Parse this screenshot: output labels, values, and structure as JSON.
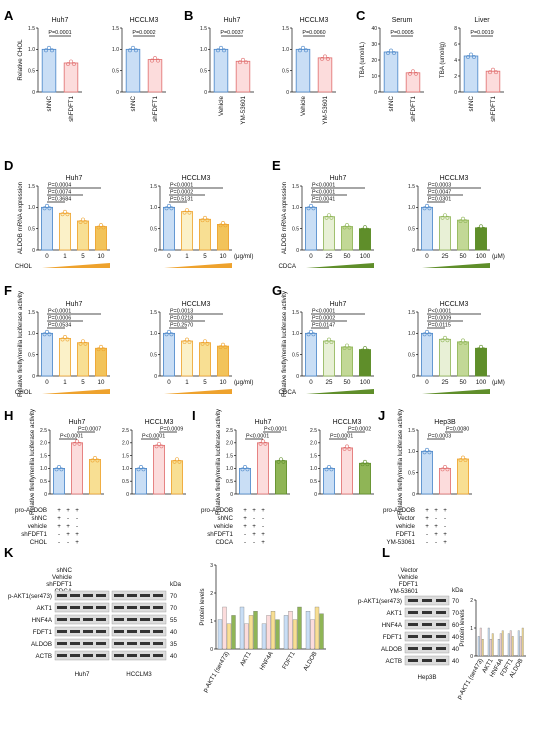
{
  "figure": {
    "panels": [
      "A",
      "B",
      "C",
      "D",
      "E",
      "F",
      "G",
      "H",
      "I",
      "J",
      "K",
      "L"
    ]
  },
  "colors": {
    "blue_bar": "#c9def5",
    "blue_edge": "#4a86c8",
    "pink_bar": "#fcdcdc",
    "pink_edge": "#e06d6d",
    "y1": "#fbf1c8",
    "y2": "#f8df93",
    "y3": "#f2c35a",
    "y4": "#eea22d",
    "g1": "#e8f0d6",
    "g2": "#c2d896",
    "g3": "#8fb556",
    "g4": "#5f8e2a",
    "orange": "#f3b15a",
    "green": "#6f9d35"
  },
  "chart_data": [
    {
      "panel": "A",
      "type": "bar",
      "title": "Huh7",
      "ylabel": "Relative CHOL",
      "categories": [
        "shNC",
        "shFDFT1"
      ],
      "values": [
        1.0,
        0.68
      ],
      "ylim": [
        0,
        1.5
      ],
      "yticks": [
        "0",
        "0.5",
        "1.0",
        "1.5"
      ],
      "pvalue": "P=0.0001"
    },
    {
      "panel": "A",
      "type": "bar",
      "title": "HCCLM3",
      "categories": [
        "shNC",
        "shFDFT1"
      ],
      "values": [
        1.0,
        0.76
      ],
      "ylim": [
        0,
        1.5
      ],
      "yticks": [
        "0",
        "0.5",
        "1.0",
        "1.5"
      ],
      "pvalue": "P=0.0002"
    },
    {
      "panel": "B",
      "type": "bar",
      "title": "Huh7",
      "categories": [
        "Vehicle",
        "YM-53601"
      ],
      "values": [
        1.0,
        0.72
      ],
      "ylim": [
        0,
        1.5
      ],
      "yticks": [
        "0",
        "0.5",
        "1.0",
        "1.5"
      ],
      "pvalue": "P=0.0037"
    },
    {
      "panel": "B",
      "type": "bar",
      "title": "HCCLM3",
      "categories": [
        "Vehicle",
        "YM-53601"
      ],
      "values": [
        1.0,
        0.8
      ],
      "ylim": [
        0,
        1.5
      ],
      "yticks": [
        "0",
        "0.5",
        "1.0",
        "1.5"
      ],
      "pvalue": "P=0.0060"
    },
    {
      "panel": "C",
      "type": "bar",
      "title": "Serum",
      "ylabel": "TBA (umol/L)",
      "categories": [
        "shNC",
        "shFDFT1"
      ],
      "values": [
        25,
        12
      ],
      "ylim": [
        0,
        40
      ],
      "yticks": [
        "0",
        "10",
        "20",
        "30",
        "40"
      ],
      "pvalue": "P=0.0005"
    },
    {
      "panel": "C",
      "type": "bar",
      "title": "Liver",
      "ylabel": "TBA (umol/g)",
      "categories": [
        "shNC",
        "shFDFT1"
      ],
      "values": [
        4.5,
        2.6
      ],
      "ylim": [
        0,
        8
      ],
      "yticks": [
        "0",
        "2",
        "4",
        "6",
        "8"
      ],
      "pvalue": "P=0.0019"
    },
    {
      "panel": "D",
      "type": "bar",
      "title": "Huh7",
      "ylabel": "ALDOB mRNA expression",
      "categories": [
        "0",
        "1",
        "5",
        "10"
      ],
      "values": [
        1.0,
        0.86,
        0.68,
        0.55
      ],
      "ylim": [
        0,
        1.5
      ],
      "yticks": [
        "0",
        "0.5",
        "1.0",
        "1.5"
      ],
      "xlabel": "CHOL",
      "pvalues": [
        "P=0.3684",
        "P=0.0074",
        "P=0.0004"
      ]
    },
    {
      "panel": "D",
      "type": "bar",
      "title": "HCCLM3",
      "categories": [
        "0",
        "1",
        "5",
        "10"
      ],
      "values": [
        1.0,
        0.9,
        0.72,
        0.6
      ],
      "ylim": [
        0,
        1.5
      ],
      "yticks": [
        "0",
        "0.5",
        "1.0",
        "1.5"
      ],
      "unit": "(μg/ml)",
      "pvalues": [
        "P=0.5131",
        "P=0.0002",
        "P<0.0001"
      ]
    },
    {
      "panel": "E",
      "type": "bar",
      "title": "Huh7",
      "ylabel": "ALDOB mRNA expression",
      "categories": [
        "0",
        "25",
        "50",
        "100"
      ],
      "values": [
        1.0,
        0.78,
        0.55,
        0.5
      ],
      "ylim": [
        0,
        1.5
      ],
      "yticks": [
        "0",
        "0.5",
        "1.0",
        "1.5"
      ],
      "xlabel": "CDCA",
      "pvalues": [
        "P=0.0041",
        "P<0.0001",
        "P<0.0001"
      ]
    },
    {
      "panel": "E",
      "type": "bar",
      "title": "HCCLM3",
      "categories": [
        "0",
        "25",
        "50",
        "100"
      ],
      "values": [
        1.0,
        0.78,
        0.7,
        0.52
      ],
      "ylim": [
        0,
        1.5
      ],
      "yticks": [
        "0",
        "0.5",
        "1.0",
        "1.5"
      ],
      "unit": "(μM)",
      "pvalues": [
        "P=0.0301",
        "P=0.0047",
        "P=0.0003"
      ]
    },
    {
      "panel": "F",
      "type": "bar",
      "title": "Huh7",
      "ylabel": "Relative firefly/renilla luciferase activity",
      "categories": [
        "0",
        "1",
        "5",
        "10"
      ],
      "values": [
        1.0,
        0.88,
        0.78,
        0.65
      ],
      "ylim": [
        0,
        1.5
      ],
      "yticks": [
        "0",
        "0.5",
        "1.0",
        "1.5"
      ],
      "xlabel": "CHOL",
      "pvalues": [
        "P=0.0534",
        "P=0.0006",
        "P<0.0001"
      ]
    },
    {
      "panel": "F",
      "type": "bar",
      "title": "HCCLM3",
      "categories": [
        "0",
        "1",
        "5",
        "10"
      ],
      "values": [
        1.0,
        0.82,
        0.78,
        0.7
      ],
      "ylim": [
        0,
        1.5
      ],
      "yticks": [
        "0",
        "0.5",
        "1.0",
        "1.5"
      ],
      "unit": "(μg/ml)",
      "pvalues": [
        "P=0.2570",
        "P=0.0218",
        "P=0.0013"
      ]
    },
    {
      "panel": "G",
      "type": "bar",
      "title": "Huh7",
      "ylabel": "Relative firefly/renilla luciferase activity",
      "categories": [
        "0",
        "25",
        "50",
        "100"
      ],
      "values": [
        1.0,
        0.82,
        0.68,
        0.62
      ],
      "ylim": [
        0,
        1.5
      ],
      "yticks": [
        "0",
        "0.5",
        "1.0",
        "1.5"
      ],
      "xlabel": "CDCA",
      "pvalues": [
        "P=0.0147",
        "P=0.0002",
        "P<0.0001"
      ]
    },
    {
      "panel": "G",
      "type": "bar",
      "title": "HCCLM3",
      "categories": [
        "0",
        "25",
        "50",
        "100"
      ],
      "values": [
        1.0,
        0.86,
        0.8,
        0.65
      ],
      "ylim": [
        0,
        1.5
      ],
      "yticks": [
        "0",
        "0.5",
        "1.0",
        "1.5"
      ],
      "unit": "(μM)",
      "pvalues": [
        "P=0.0115",
        "P=0.0009",
        "P<0.0001"
      ]
    },
    {
      "panel": "H",
      "type": "bar",
      "title": "Huh7",
      "ylabel": "Relative firefly/renilla luciferase activity",
      "categories": [
        "1",
        "2",
        "3"
      ],
      "values": [
        1.0,
        2.0,
        1.35
      ],
      "ylim": [
        0,
        2.5
      ],
      "yticks": [
        "0",
        "0.5",
        "1.0",
        "1.5",
        "2.0",
        "2.5"
      ],
      "pvalues": [
        "P<0.0001",
        "P=0.0007"
      ]
    },
    {
      "panel": "H",
      "type": "bar",
      "title": "HCCLM3",
      "categories": [
        "1",
        "2",
        "3"
      ],
      "values": [
        1.0,
        1.9,
        1.3
      ],
      "ylim": [
        0,
        2.5
      ],
      "yticks": [
        "0",
        "0.5",
        "1.0",
        "1.5",
        "2.0",
        "2.5"
      ],
      "pvalues": [
        "P<0.0001",
        "P=0.0009"
      ]
    },
    {
      "panel": "I",
      "type": "bar",
      "title": "Huh7",
      "ylabel": "Relative firefly/renilla luciferase activity",
      "categories": [
        "1",
        "2",
        "3"
      ],
      "values": [
        1.0,
        2.0,
        1.3
      ],
      "ylim": [
        0,
        2.5
      ],
      "yticks": [
        "0",
        "0.5",
        "1.0",
        "1.5",
        "2.0",
        "2.5"
      ],
      "pvalues": [
        "P<0.0001",
        "P<0.0001"
      ]
    },
    {
      "panel": "I",
      "type": "bar",
      "title": "HCCLM3",
      "categories": [
        "1",
        "2",
        "3"
      ],
      "values": [
        1.0,
        1.8,
        1.2
      ],
      "ylim": [
        0,
        2.5
      ],
      "yticks": [
        "0",
        "0.5",
        "1.0",
        "1.5",
        "2.0",
        "2.5"
      ],
      "pvalues": [
        "P=0.0001",
        "P=0.0002"
      ]
    },
    {
      "panel": "J",
      "type": "bar",
      "title": "Hep3B",
      "ylabel": "Relative firefly/renilla luciferase activity",
      "categories": [
        "1",
        "2",
        "3"
      ],
      "values": [
        1.0,
        0.6,
        0.82
      ],
      "ylim": [
        0,
        1.5
      ],
      "yticks": [
        "0",
        "0.5",
        "1.0",
        "1.5"
      ],
      "pvalues": [
        "P=0.0003",
        "P=0.0080"
      ]
    },
    {
      "panel": "K",
      "type": "bar",
      "ylabel": "Protein levels",
      "categories": [
        "p-AKT1 (ser473)",
        "AKT1",
        "HNF4A",
        "FDFT1",
        "ALDOB"
      ],
      "ylim": [
        0,
        2
      ],
      "yticks": [
        "0",
        "1",
        "2",
        "3"
      ]
    },
    {
      "panel": "L",
      "type": "bar",
      "ylabel": "Protein levels",
      "categories": [
        "p-AKT1 (ser473)",
        "AKT1",
        "HNF4A",
        "FDFT1",
        "ALDOB"
      ],
      "ylim": [
        0,
        2
      ],
      "yticks": [
        "0",
        "1",
        "2"
      ]
    }
  ],
  "labels": {
    "A": "A",
    "B": "B",
    "C": "C",
    "D": "D",
    "E": "E",
    "F": "F",
    "G": "G",
    "H": "H",
    "I": "I",
    "J": "J",
    "K": "K",
    "L": "L"
  },
  "cond_H": {
    "rows": [
      "pro-ALDOB",
      "shNC",
      "vehicle",
      "shFDFT1",
      "CHOL"
    ],
    "cols": [
      [
        "+",
        "+",
        "+"
      ],
      [
        "+",
        "-",
        "-"
      ],
      [
        "+",
        "+",
        "-"
      ],
      [
        "-",
        "+",
        "+"
      ],
      [
        "-",
        "-",
        "+"
      ]
    ]
  },
  "cond_I": {
    "rows": [
      "pro-ALDOB",
      "shNC",
      "vehicle",
      "shFDFT1",
      "CDCA"
    ],
    "cols": [
      [
        "+",
        "+",
        "+"
      ],
      [
        "+",
        "-",
        "-"
      ],
      [
        "+",
        "+",
        "-"
      ],
      [
        "-",
        "+",
        "+"
      ],
      [
        "-",
        "-",
        "+"
      ]
    ]
  },
  "cond_J": {
    "rows": [
      "pro-ALDOB",
      "Vector",
      "vehicle",
      "FDFT1",
      "YM-53061"
    ],
    "cols": [
      [
        "+",
        "+",
        "+"
      ],
      [
        "+",
        "-",
        "-"
      ],
      [
        "+",
        "+",
        "-"
      ],
      [
        "-",
        "+",
        "+"
      ],
      [
        "-",
        "-",
        "+"
      ]
    ]
  },
  "blot_K": {
    "rows": [
      "shNC",
      "Vehicle",
      "shFDFT1",
      "CDCA"
    ],
    "proteins": [
      "p-AKT1(ser473)",
      "AKT1",
      "HNF4A",
      "FDFT1",
      "ALDOB",
      "ACTB"
    ],
    "kda": [
      "70",
      "70",
      "55",
      "40",
      "35",
      "40"
    ],
    "cells": [
      "Huh7",
      "HCCLM3"
    ],
    "kda_label": "kDa"
  },
  "blot_L": {
    "rows": [
      "Vector",
      "Vehicle",
      "FDFT1",
      "YM-53601"
    ],
    "proteins": [
      "p-AKT1(ser473)",
      "AKT1",
      "HNF4A",
      "FDFT1",
      "ALDOB",
      "ACTB"
    ],
    "kda": [
      "70",
      "70",
      "60",
      "40",
      "40",
      "40"
    ],
    "cell": "Hep3B",
    "kda_label": "kDa"
  }
}
